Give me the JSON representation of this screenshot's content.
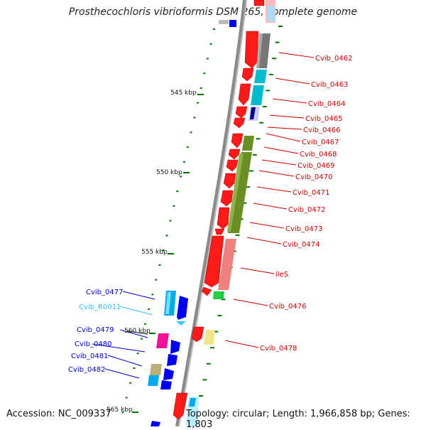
{
  "title": "Prosthecochloris vibrioformis DSM 265, complete genome",
  "footer": {
    "accession": "Accession: NC_009337",
    "summary": "Topology: circular; Length: 1,966,858 bp; Genes: 1,803"
  },
  "ruler": [
    "545 kbp",
    "550 kbp",
    "555 kbp",
    "560 kbp",
    "565 kbp"
  ],
  "colors": {
    "backbone": "#808080",
    "forward_gene": "#ff0000",
    "reverse_gene": "#0000ff",
    "trna": "#33ccff",
    "tick": "#007700",
    "label_right": "#cc0000",
    "label_left": "#0000cc",
    "label_trna": "#33bbee"
  },
  "labels_right": [
    "Cvib_0462",
    "Cvib_0463",
    "Cvib_0464",
    "Cvib_0465",
    "Cvib_0466",
    "Cvib_0467",
    "Cvib_0468",
    "Cvib_0469",
    "Cvib_0470",
    "Cvib_0471",
    "Cvib_0472",
    "Cvib_0473",
    "Cvib_0474",
    "ileS",
    "Cvib_0476",
    "Cvib_0478"
  ],
  "labels_left": [
    "Cvib_0477",
    "Cvib_R0011",
    "Cvib_0479",
    "Cvib_0480",
    "Cvib_0481",
    "Cvib_0482"
  ]
}
